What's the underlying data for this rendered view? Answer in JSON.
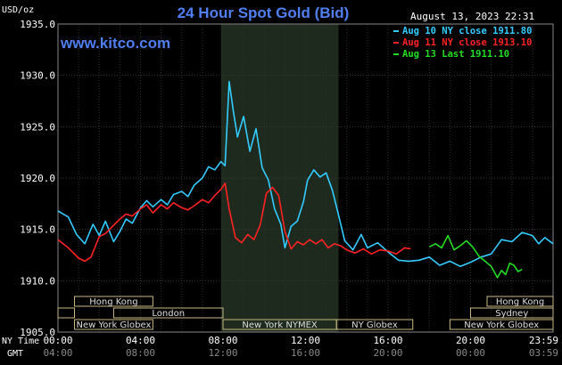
{
  "chart_data": {
    "type": "line",
    "title": "24 Hour Spot Gold (Bid)",
    "ylabel": "USD/oz",
    "ylim": [
      1905,
      1935
    ],
    "yticks": [
      "1935.0",
      "1930.0",
      "1925.0",
      "1920.0",
      "1915.0",
      "1910.0",
      "1905.0"
    ],
    "xlim": [
      0,
      24
    ],
    "x_ticks": [
      {
        "x": 0,
        "ny": "00:00",
        "gmt": "04:00"
      },
      {
        "x": 4,
        "ny": "04:00",
        "gmt": "08:00"
      },
      {
        "x": 8,
        "ny": "08:00",
        "gmt": "12:00"
      },
      {
        "x": 12,
        "ny": "12:00",
        "gmt": "16:00"
      },
      {
        "x": 16,
        "ny": "16:00",
        "gmt": "20:00"
      },
      {
        "x": 20,
        "ny": "20:00",
        "gmt": "00:00"
      },
      {
        "x": 24,
        "ny": "23:59",
        "gmt": "03:59"
      }
    ],
    "x_row_labels": {
      "ny": "NY Time",
      "gmt": "GMT"
    },
    "timestamp": "August 13, 2023 22:31",
    "website": "www.kitco.com",
    "highlight_range": [
      7.9,
      13.6
    ],
    "legend": [
      {
        "text": "Aug 10 NY close 1911.80",
        "color": "#33ccff"
      },
      {
        "text": "Aug 11 NY close 1913.10",
        "color": "#ff2222"
      },
      {
        "text": "Aug 13 Last 1911.10",
        "color": "#22dd22"
      }
    ],
    "series": [
      {
        "name": "Aug 10 NY close 1911.80",
        "color": "#33ccff",
        "x": [
          0,
          0.5,
          0.9,
          1.3,
          1.7,
          2.0,
          2.3,
          2.7,
          3.0,
          3.3,
          3.6,
          4.0,
          4.3,
          4.6,
          5.0,
          5.3,
          5.6,
          6.0,
          6.3,
          6.6,
          7.0,
          7.3,
          7.6,
          7.9,
          8.1,
          8.3,
          8.5,
          8.7,
          9.0,
          9.3,
          9.6,
          9.9,
          10.2,
          10.5,
          10.8,
          11.0,
          11.3,
          11.6,
          11.9,
          12.1,
          12.4,
          12.7,
          13.0,
          13.3,
          13.6,
          13.9,
          14.3,
          14.7,
          15.0,
          15.5,
          16.0,
          16.5,
          17.0,
          17.5,
          18.0,
          18.5,
          19.0,
          19.5,
          20.0,
          20.5,
          21.0,
          21.5,
          22.0,
          22.5,
          23.0,
          23.3,
          23.6,
          24.0
        ],
        "values": [
          1916.8,
          1916.2,
          1914.5,
          1913.6,
          1915.5,
          1914.4,
          1915.8,
          1913.8,
          1914.8,
          1916.0,
          1915.6,
          1917.1,
          1917.8,
          1917.2,
          1917.9,
          1917.4,
          1918.4,
          1918.7,
          1918.2,
          1919.3,
          1920.0,
          1921.1,
          1920.8,
          1921.6,
          1921.2,
          1929.4,
          1926.5,
          1924.0,
          1926.0,
          1922.6,
          1924.8,
          1921.0,
          1919.8,
          1917.0,
          1915.5,
          1913.2,
          1915.3,
          1915.8,
          1917.7,
          1919.8,
          1920.8,
          1920.1,
          1920.5,
          1918.8,
          1916.4,
          1913.9,
          1913.0,
          1914.5,
          1913.2,
          1913.7,
          1912.8,
          1912.0,
          1911.9,
          1912.0,
          1912.3,
          1911.5,
          1911.9,
          1911.4,
          1911.8,
          1912.3,
          1912.6,
          1914.0,
          1913.8,
          1914.7,
          1914.4,
          1913.6,
          1914.2,
          1913.6
        ]
      },
      {
        "name": "Aug 11 NY close 1913.10",
        "color": "#ff2222",
        "x": [
          0,
          0.5,
          1.0,
          1.3,
          1.6,
          2.0,
          2.3,
          2.6,
          3.0,
          3.3,
          3.6,
          4.0,
          4.3,
          4.6,
          5.0,
          5.3,
          5.6,
          6.0,
          6.3,
          6.6,
          7.0,
          7.3,
          7.6,
          7.9,
          8.1,
          8.3,
          8.6,
          8.9,
          9.2,
          9.5,
          9.8,
          10.1,
          10.4,
          10.7,
          11.0,
          11.3,
          11.6,
          11.9,
          12.2,
          12.5,
          12.8,
          13.1,
          13.4,
          13.7,
          14.0,
          14.4,
          14.8,
          15.2,
          15.6,
          16.0,
          16.4,
          16.8,
          17.1
        ],
        "values": [
          1914.0,
          1913.2,
          1912.2,
          1911.9,
          1912.3,
          1914.3,
          1914.6,
          1915.2,
          1916.0,
          1916.5,
          1916.3,
          1917.0,
          1917.4,
          1916.6,
          1917.4,
          1917.0,
          1917.6,
          1917.1,
          1916.9,
          1917.3,
          1917.9,
          1917.6,
          1918.3,
          1918.9,
          1919.5,
          1917.0,
          1914.2,
          1913.7,
          1914.5,
          1914.0,
          1915.4,
          1918.5,
          1919.1,
          1918.3,
          1914.8,
          1913.1,
          1913.8,
          1913.5,
          1914.0,
          1913.6,
          1914.0,
          1913.2,
          1913.6,
          1913.4,
          1913.0,
          1912.7,
          1913.1,
          1912.6,
          1913.0,
          1912.9,
          1912.6,
          1913.2,
          1913.1
        ]
      },
      {
        "name": "Aug 13 Last 1911.10",
        "color": "#22dd22",
        "x": [
          18.0,
          18.3,
          18.6,
          18.9,
          19.2,
          19.5,
          19.8,
          20.1,
          20.4,
          20.7,
          21.0,
          21.3,
          21.5,
          21.7,
          21.9,
          22.1,
          22.3,
          22.5
        ],
        "values": [
          1913.3,
          1913.6,
          1913.2,
          1914.4,
          1913.0,
          1913.4,
          1913.9,
          1913.3,
          1912.4,
          1911.9,
          1911.4,
          1910.3,
          1911.0,
          1910.6,
          1911.7,
          1911.5,
          1910.9,
          1911.1
        ]
      }
    ],
    "sessions": [
      {
        "name": "Hong Kong",
        "row": 0,
        "ranges": [
          [
            0.8,
            4.6
          ],
          [
            20.8,
            24.0
          ]
        ]
      },
      {
        "name": "Sydney",
        "row": 1,
        "ranges": [
          [
            20.0,
            24.0
          ]
        ],
        "left_stub": [
          0,
          0.8
        ]
      },
      {
        "name": "London",
        "row": 2,
        "ranges": [
          [
            0,
            0.8
          ],
          [
            2.7,
            8.0
          ]
        ]
      },
      {
        "name": "New York Globex",
        "row": 3,
        "ranges": [
          [
            0.8,
            4.6
          ],
          [
            19.0,
            24.0
          ]
        ]
      },
      {
        "name": "New York NYMEX",
        "row": 3,
        "ranges": [
          [
            8.0,
            13.5
          ]
        ]
      },
      {
        "name": "NY Globex",
        "row": 3,
        "ranges": [
          [
            13.5,
            17.2
          ]
        ]
      }
    ]
  }
}
